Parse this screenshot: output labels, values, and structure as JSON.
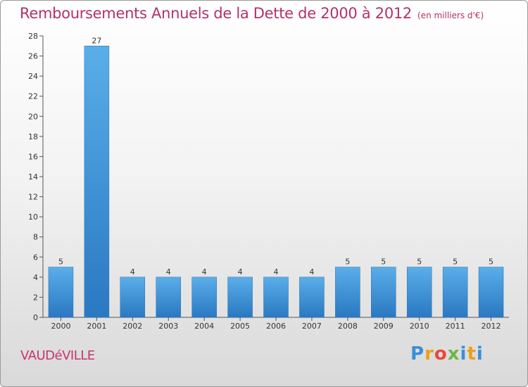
{
  "chart_data": {
    "type": "bar",
    "title": "Remboursements Annuels de la Dette de 2000 à 2012",
    "subtitle": "(en milliers d'€)",
    "categories": [
      "2000",
      "2001",
      "2002",
      "2003",
      "2004",
      "2005",
      "2006",
      "2007",
      "2008",
      "2009",
      "2010",
      "2011",
      "2012"
    ],
    "values": [
      5,
      27,
      4,
      4,
      4,
      4,
      4,
      4,
      5,
      5,
      5,
      5,
      5
    ],
    "value_labels": [
      "5",
      "27",
      "4",
      "4",
      "4",
      "4",
      "4",
      "4",
      "5",
      "5",
      "5",
      "5",
      "5"
    ],
    "ylim": [
      0,
      28
    ],
    "yticks": [
      0,
      2,
      4,
      6,
      8,
      10,
      12,
      14,
      16,
      18,
      20,
      22,
      24,
      26,
      28
    ],
    "grid": false,
    "bar_color": "#3a8fd6"
  },
  "footer": {
    "commune": "VAUDéVILLE",
    "logo_letters": [
      "P",
      "r",
      "o",
      "x",
      "i",
      "t",
      "i"
    ]
  }
}
